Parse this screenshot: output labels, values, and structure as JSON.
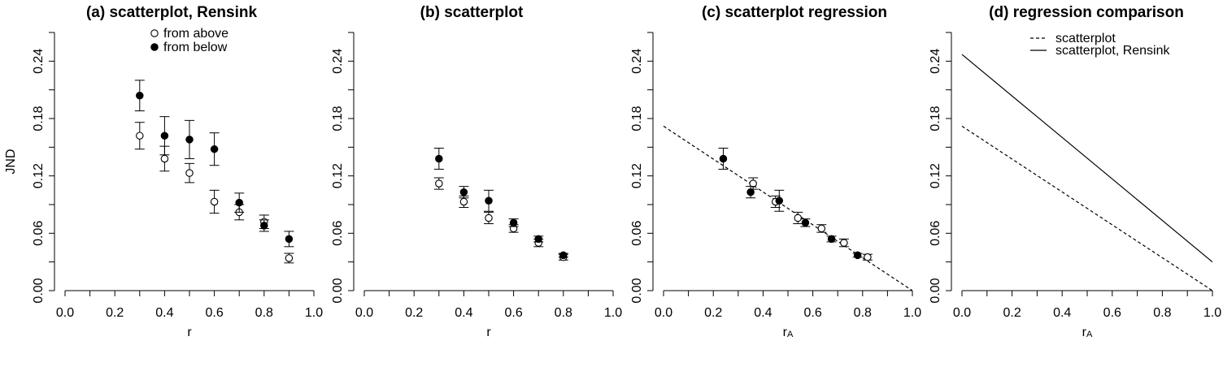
{
  "chart_data": [
    {
      "type": "scatter",
      "title": "(a) scatterplot, Rensink",
      "xlabel": "r",
      "xlabel_sub": "",
      "ylabel": "JND",
      "xlim": [
        0.0,
        1.0
      ],
      "ylim": [
        0.0,
        0.27
      ],
      "xticks": [
        "0.0",
        "0.2",
        "0.4",
        "0.6",
        "0.8",
        "1.0"
      ],
      "yticks": [
        "0.00",
        "0.06",
        "0.12",
        "0.18",
        "0.24"
      ],
      "legend": {
        "position": "top-center",
        "entries": [
          "from above",
          "from below"
        ]
      },
      "series": [
        {
          "name": "from above",
          "marker": "open",
          "points": [
            {
              "x": 0.3,
              "y": 0.162,
              "err": 0.014
            },
            {
              "x": 0.4,
              "y": 0.138,
              "err": 0.013
            },
            {
              "x": 0.5,
              "y": 0.123,
              "err": 0.01
            },
            {
              "x": 0.6,
              "y": 0.093,
              "err": 0.012
            },
            {
              "x": 0.7,
              "y": 0.082,
              "err": 0.008
            },
            {
              "x": 0.8,
              "y": 0.072,
              "err": 0.007
            },
            {
              "x": 0.9,
              "y": 0.034,
              "err": 0.005
            }
          ]
        },
        {
          "name": "from below",
          "marker": "filled",
          "points": [
            {
              "x": 0.3,
              "y": 0.204,
              "err": 0.016
            },
            {
              "x": 0.4,
              "y": 0.162,
              "err": 0.02
            },
            {
              "x": 0.5,
              "y": 0.158,
              "err": 0.02
            },
            {
              "x": 0.6,
              "y": 0.148,
              "err": 0.017
            },
            {
              "x": 0.7,
              "y": 0.092,
              "err": 0.01
            },
            {
              "x": 0.8,
              "y": 0.068,
              "err": 0.006
            },
            {
              "x": 0.9,
              "y": 0.054,
              "err": 0.008
            }
          ]
        }
      ]
    },
    {
      "type": "scatter",
      "title": "(b) scatterplot",
      "xlabel": "r",
      "xlabel_sub": "",
      "ylabel": "",
      "xlim": [
        0.0,
        1.0
      ],
      "ylim": [
        0.0,
        0.27
      ],
      "xticks": [
        "0.0",
        "0.2",
        "0.4",
        "0.6",
        "0.8",
        "1.0"
      ],
      "yticks": [
        "0.00",
        "0.06",
        "0.12",
        "0.18",
        "0.24"
      ],
      "series": [
        {
          "name": "from above",
          "marker": "open",
          "points": [
            {
              "x": 0.3,
              "y": 0.112,
              "err": 0.006
            },
            {
              "x": 0.4,
              "y": 0.093,
              "err": 0.006
            },
            {
              "x": 0.5,
              "y": 0.076,
              "err": 0.006
            },
            {
              "x": 0.6,
              "y": 0.065,
              "err": 0.004
            },
            {
              "x": 0.7,
              "y": 0.05,
              "err": 0.004
            },
            {
              "x": 0.8,
              "y": 0.035,
              "err": 0.003
            }
          ]
        },
        {
          "name": "from below",
          "marker": "filled",
          "points": [
            {
              "x": 0.3,
              "y": 0.138,
              "err": 0.011
            },
            {
              "x": 0.4,
              "y": 0.103,
              "err": 0.006
            },
            {
              "x": 0.5,
              "y": 0.094,
              "err": 0.011
            },
            {
              "x": 0.6,
              "y": 0.071,
              "err": 0.004
            },
            {
              "x": 0.7,
              "y": 0.054,
              "err": 0.003
            },
            {
              "x": 0.8,
              "y": 0.037,
              "err": 0.002
            }
          ]
        }
      ]
    },
    {
      "type": "scatter",
      "title": "(c) scatterplot regression",
      "xlabel": "r",
      "xlabel_sub": "A",
      "ylabel": "",
      "xlim": [
        0.0,
        1.0
      ],
      "ylim": [
        0.0,
        0.27
      ],
      "xticks": [
        "0.0",
        "0.2",
        "0.4",
        "0.6",
        "0.8",
        "1.0"
      ],
      "yticks": [
        "0.00",
        "0.06",
        "0.12",
        "0.18",
        "0.24"
      ],
      "lines": [
        {
          "style": "dashed",
          "x": [
            0.0,
            1.0
          ],
          "y": [
            0.172,
            0.0
          ]
        }
      ],
      "series": [
        {
          "name": "from above",
          "marker": "open",
          "points": [
            {
              "x": 0.36,
              "y": 0.112,
              "err": 0.006
            },
            {
              "x": 0.45,
              "y": 0.093,
              "err": 0.006
            },
            {
              "x": 0.54,
              "y": 0.076,
              "err": 0.006
            },
            {
              "x": 0.635,
              "y": 0.065,
              "err": 0.004
            },
            {
              "x": 0.725,
              "y": 0.05,
              "err": 0.004
            },
            {
              "x": 0.82,
              "y": 0.035,
              "err": 0.003
            }
          ]
        },
        {
          "name": "from below",
          "marker": "filled",
          "points": [
            {
              "x": 0.24,
              "y": 0.138,
              "err": 0.011
            },
            {
              "x": 0.35,
              "y": 0.103,
              "err": 0.006
            },
            {
              "x": 0.465,
              "y": 0.094,
              "err": 0.011
            },
            {
              "x": 0.57,
              "y": 0.071,
              "err": 0.004
            },
            {
              "x": 0.675,
              "y": 0.054,
              "err": 0.003
            },
            {
              "x": 0.78,
              "y": 0.037,
              "err": 0.002
            }
          ]
        }
      ]
    },
    {
      "type": "line",
      "title": "(d) regression comparison",
      "xlabel": "r",
      "xlabel_sub": "A",
      "ylabel": "",
      "xlim": [
        0.0,
        1.0
      ],
      "ylim": [
        0.0,
        0.27
      ],
      "xticks": [
        "0.0",
        "0.2",
        "0.4",
        "0.6",
        "0.8",
        "1.0"
      ],
      "yticks": [
        "0.00",
        "0.06",
        "0.12",
        "0.18",
        "0.24"
      ],
      "legend": {
        "position": "top-right",
        "entries": [
          "scatterplot",
          "scatterplot, Rensink"
        ]
      },
      "lines": [
        {
          "name": "scatterplot",
          "style": "dashed",
          "x": [
            0.0,
            1.0
          ],
          "y": [
            0.172,
            0.0
          ]
        },
        {
          "name": "scatterplot, Rensink",
          "style": "solid",
          "x": [
            0.0,
            1.0
          ],
          "y": [
            0.247,
            0.03
          ]
        }
      ]
    }
  ]
}
